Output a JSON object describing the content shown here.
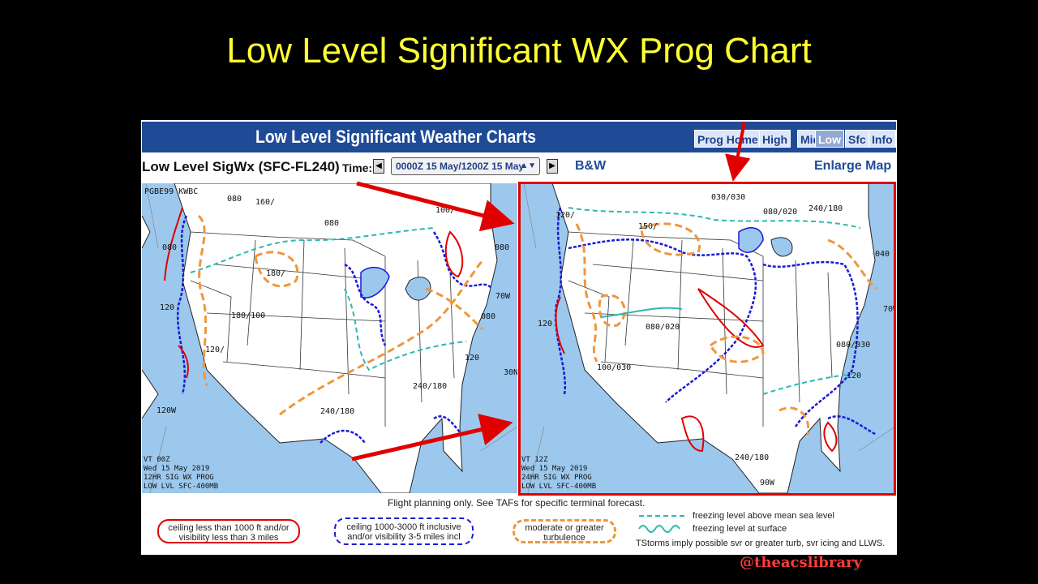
{
  "slide": {
    "title": "Low Level Significant WX Prog Chart"
  },
  "header": {
    "title": "Low Level Significant Weather Charts",
    "nav": [
      "Prog Home",
      "High",
      "Mid",
      "Low",
      "Sfc",
      "Info"
    ],
    "active_nav": "Low"
  },
  "controls": {
    "product_label": "Low Level SigWx (SFC-FL240)",
    "time_label": "Time:",
    "time_value": "0000Z 15 May/1200Z 15 May",
    "bw_link": "B&W",
    "enlarge_link": "Enlarge Map"
  },
  "left_map": {
    "header_code": "PGBE99 KWBC",
    "info": [
      "VT 00Z",
      "Wed 15 May 2019",
      "12HR SIG WX PROG",
      "LOW LVL SFC-400MB"
    ],
    "labels": [
      "080",
      "160/",
      "080",
      "100/",
      "080",
      "080",
      "180/",
      "120",
      "180/100",
      "120/",
      "080",
      "120",
      "240/180",
      "240/180",
      "120W",
      "30N",
      "70W"
    ]
  },
  "right_map": {
    "info": [
      "VT 12Z",
      "Wed 15 May 2019",
      "24HR SIG WX PROG",
      "LOW LVL SFC-400MB"
    ],
    "labels": [
      "030/030",
      "080/020",
      "240/180",
      "120/",
      "150/",
      "040",
      "080/020",
      "120",
      "100/030",
      "080/030",
      "120",
      "240/180",
      "70W",
      "90W"
    ]
  },
  "legend": {
    "note": "Flight planning only. See TAFs for specific terminal forecast.",
    "ifr": "ceiling less than 1000 ft and/or visibility less than 3 miles",
    "mvfr": "ceiling 1000-3000 ft inclusive and/or visibility 3-5 miles incl",
    "turbulence": "moderate or greater turbulence",
    "freezing_msl": "freezing level above mean sea level",
    "freezing_sfc": "freezing level at surface",
    "tstorms": "TStorms imply possible svr or greater turb, svr icing and LLWS."
  },
  "watermark": "@theacslibrary",
  "colors": {
    "title": "#ffff33",
    "header_bg": "#1f4b96",
    "ifr": "#e00000",
    "mvfr": "#1a1ad6",
    "turbulence": "#f0963c",
    "freezing": "#2cb8b0",
    "ocean": "#9cc8ee"
  }
}
